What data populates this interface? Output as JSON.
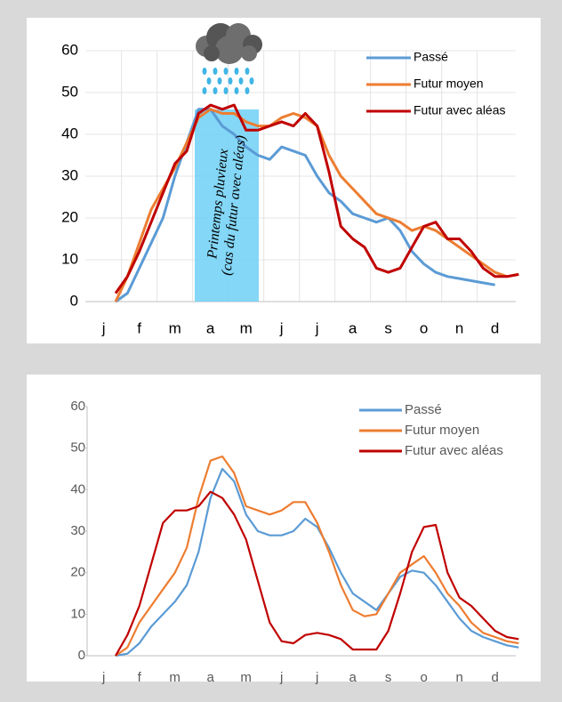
{
  "chart_data": [
    {
      "type": "line",
      "categories": [
        "j",
        null,
        null,
        "f",
        null,
        null,
        "m",
        null,
        null,
        "a",
        null,
        null,
        "m",
        null,
        null,
        "j",
        null,
        null,
        "j",
        null,
        null,
        "a",
        null,
        null,
        "s",
        null,
        null,
        "o",
        null,
        null,
        "n",
        null,
        null,
        "d",
        null,
        null
      ],
      "series": [
        {
          "name": "Passé",
          "color": "#5b9bd5",
          "values": [
            null,
            0,
            2,
            8,
            14,
            20,
            30,
            38,
            46,
            46,
            42,
            40,
            37,
            35,
            34,
            37,
            36,
            35,
            30,
            26,
            24,
            21,
            20,
            19,
            20,
            17,
            12,
            9,
            7,
            6,
            5.5,
            5,
            4.5,
            4,
            null,
            null
          ]
        },
        {
          "name": "Futur moyen",
          "color": "#ed7d31",
          "values": [
            null,
            0,
            6,
            14,
            22,
            27,
            32,
            38,
            44,
            46,
            45,
            45,
            43,
            42,
            42,
            44,
            45,
            44,
            42,
            35,
            30,
            27,
            24,
            21,
            20,
            19,
            17,
            18,
            17,
            15,
            13,
            11,
            9,
            7,
            6,
            6.5
          ]
        },
        {
          "name": "Futur avec aléas",
          "color": "#c00000",
          "values": [
            null,
            2,
            6,
            12,
            19,
            26,
            33,
            36,
            45,
            47,
            46,
            47,
            41,
            41,
            42,
            43,
            42,
            45,
            42,
            31,
            18,
            15,
            13,
            8,
            7,
            8,
            13,
            18,
            19,
            15,
            15,
            12,
            8,
            6,
            6,
            6.5
          ]
        }
      ],
      "ylim": [
        0,
        60
      ],
      "yticks": [
        0,
        10,
        20,
        30,
        40,
        50,
        60
      ],
      "grid": true,
      "legend": "top-right",
      "annotations": [
        "Printemps pluvieux",
        "(cas du futur avec aléas)"
      ]
    },
    {
      "type": "line",
      "categories": [
        "j",
        null,
        null,
        "f",
        null,
        null,
        "m",
        null,
        null,
        "a",
        null,
        null,
        "m",
        null,
        null,
        "j",
        null,
        null,
        "j",
        null,
        null,
        "a",
        null,
        null,
        "s",
        null,
        null,
        "o",
        null,
        null,
        "n",
        null,
        null,
        "d",
        null,
        null
      ],
      "series": [
        {
          "name": "Passé",
          "color": "#5b9bd5",
          "values": [
            null,
            0,
            0.5,
            3,
            7,
            10,
            13,
            17,
            25,
            38,
            45,
            42,
            34,
            30,
            29,
            29,
            30,
            33,
            31,
            26,
            20,
            15,
            13,
            11,
            15,
            19,
            20.5,
            20,
            17,
            13,
            9,
            6,
            4.5,
            3.5,
            2.5,
            2
          ]
        },
        {
          "name": "Futur moyen",
          "color": "#ed7d31",
          "values": [
            null,
            0,
            2,
            8,
            12,
            16,
            20,
            26,
            38,
            47,
            48,
            44,
            36,
            35,
            34,
            35,
            37,
            37,
            32,
            25,
            17,
            11,
            9.5,
            10,
            15,
            20,
            22,
            24,
            20,
            15,
            12,
            8,
            5.5,
            4.5,
            3.5,
            3
          ]
        },
        {
          "name": "Futur avec aléas",
          "color": "#c00000",
          "values": [
            null,
            0,
            5,
            12,
            22,
            32,
            35,
            35,
            36,
            39.5,
            38,
            34,
            28,
            18,
            8,
            3.5,
            3,
            5,
            5.5,
            5,
            4,
            1.5,
            1.5,
            1.5,
            6,
            15,
            25,
            31,
            31.5,
            20,
            14,
            12,
            9,
            6,
            4.5,
            4
          ]
        }
      ],
      "ylim": [
        0,
        60
      ],
      "yticks": [
        0,
        10,
        20,
        30,
        40,
        50,
        60
      ],
      "grid": false,
      "legend": "top-right"
    }
  ]
}
